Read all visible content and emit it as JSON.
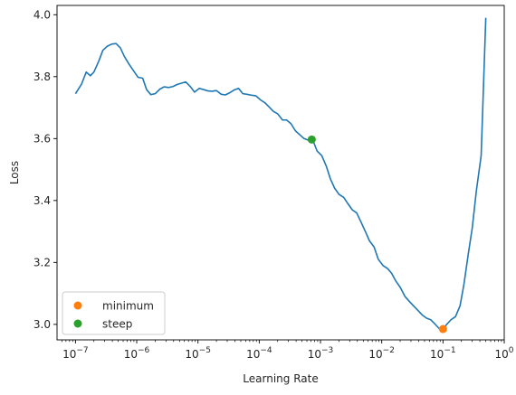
{
  "chart_data": {
    "type": "line",
    "xlabel": "Learning Rate",
    "ylabel": "Loss",
    "xscale": "log",
    "xlim": [
      5e-08,
      1.0
    ],
    "ylim": [
      2.95,
      4.03
    ],
    "xticks": [
      {
        "value": 1e-07,
        "base": "10",
        "exp": "−7"
      },
      {
        "value": 1e-06,
        "base": "10",
        "exp": "−6"
      },
      {
        "value": 1e-05,
        "base": "10",
        "exp": "−5"
      },
      {
        "value": 0.0001,
        "base": "10",
        "exp": "−4"
      },
      {
        "value": 0.001,
        "base": "10",
        "exp": "−3"
      },
      {
        "value": 0.01,
        "base": "10",
        "exp": "−2"
      },
      {
        "value": 0.1,
        "base": "10",
        "exp": "−1"
      },
      {
        "value": 1,
        "base": "10",
        "exp": "0"
      }
    ],
    "yticks": [
      {
        "value": 3.0,
        "label": "3.0"
      },
      {
        "value": 3.2,
        "label": "3.2"
      },
      {
        "value": 3.4,
        "label": "3.4"
      },
      {
        "value": 3.6,
        "label": "3.6"
      },
      {
        "value": 3.8,
        "label": "3.8"
      },
      {
        "value": 4.0,
        "label": "4.0"
      }
    ],
    "grid": false,
    "legend_position": "lower-left",
    "series": [
      {
        "color": "#1f77b4",
        "points": [
          [
            1e-07,
            3.745
          ],
          [
            1.25e-07,
            3.775
          ],
          [
            1.5e-07,
            3.815
          ],
          [
            1.75e-07,
            3.803
          ],
          [
            2e-07,
            3.815
          ],
          [
            2.4e-07,
            3.85
          ],
          [
            2.8e-07,
            3.885
          ],
          [
            3.3e-07,
            3.898
          ],
          [
            3.9e-07,
            3.905
          ],
          [
            4.6e-07,
            3.907
          ],
          [
            5.4e-07,
            3.893
          ],
          [
            6.3e-07,
            3.865
          ],
          [
            7.5e-07,
            3.84
          ],
          [
            8.8e-07,
            3.82
          ],
          [
            1.05e-06,
            3.798
          ],
          [
            1.25e-06,
            3.795
          ],
          [
            1.45e-06,
            3.758
          ],
          [
            1.7e-06,
            3.742
          ],
          [
            2e-06,
            3.745
          ],
          [
            2.4e-06,
            3.76
          ],
          [
            2.8e-06,
            3.767
          ],
          [
            3.3e-06,
            3.765
          ],
          [
            3.9e-06,
            3.768
          ],
          [
            4.6e-06,
            3.775
          ],
          [
            5.4e-06,
            3.779
          ],
          [
            6.3e-06,
            3.783
          ],
          [
            7.5e-06,
            3.768
          ],
          [
            8.8e-06,
            3.75
          ],
          [
            1.05e-05,
            3.762
          ],
          [
            1.25e-05,
            3.758
          ],
          [
            1.45e-05,
            3.754
          ],
          [
            1.7e-05,
            3.753
          ],
          [
            2e-05,
            3.755
          ],
          [
            2.4e-05,
            3.743
          ],
          [
            2.8e-05,
            3.741
          ],
          [
            3.3e-05,
            3.748
          ],
          [
            3.9e-05,
            3.757
          ],
          [
            4.6e-05,
            3.762
          ],
          [
            5.4e-05,
            3.745
          ],
          [
            6.3e-05,
            3.743
          ],
          [
            7.5e-05,
            3.74
          ],
          [
            8.8e-05,
            3.738
          ],
          [
            0.000105,
            3.725
          ],
          [
            0.000125,
            3.715
          ],
          [
            0.000145,
            3.702
          ],
          [
            0.00017,
            3.688
          ],
          [
            0.0002,
            3.68
          ],
          [
            0.00024,
            3.66
          ],
          [
            0.00028,
            3.66
          ],
          [
            0.00033,
            3.648
          ],
          [
            0.00039,
            3.625
          ],
          [
            0.00046,
            3.612
          ],
          [
            0.00054,
            3.6
          ],
          [
            0.00063,
            3.595
          ],
          [
            0.00075,
            3.595
          ],
          [
            0.00088,
            3.56
          ],
          [
            0.00105,
            3.545
          ],
          [
            0.00125,
            3.51
          ],
          [
            0.00145,
            3.47
          ],
          [
            0.0017,
            3.44
          ],
          [
            0.002,
            3.42
          ],
          [
            0.0024,
            3.41
          ],
          [
            0.0028,
            3.39
          ],
          [
            0.0033,
            3.37
          ],
          [
            0.0039,
            3.36
          ],
          [
            0.0046,
            3.33
          ],
          [
            0.0054,
            3.3
          ],
          [
            0.0063,
            3.27
          ],
          [
            0.0075,
            3.25
          ],
          [
            0.0088,
            3.21
          ],
          [
            0.0105,
            3.19
          ],
          [
            0.0125,
            3.18
          ],
          [
            0.0145,
            3.165
          ],
          [
            0.017,
            3.14
          ],
          [
            0.02,
            3.12
          ],
          [
            0.024,
            3.09
          ],
          [
            0.028,
            3.075
          ],
          [
            0.033,
            3.06
          ],
          [
            0.039,
            3.045
          ],
          [
            0.046,
            3.03
          ],
          [
            0.054,
            3.02
          ],
          [
            0.063,
            3.015
          ],
          [
            0.075,
            3.0
          ],
          [
            0.088,
            2.985
          ],
          [
            0.1,
            2.985
          ],
          [
            0.115,
            3.0
          ],
          [
            0.135,
            3.015
          ],
          [
            0.16,
            3.025
          ],
          [
            0.19,
            3.06
          ],
          [
            0.22,
            3.13
          ],
          [
            0.26,
            3.23
          ],
          [
            0.3,
            3.31
          ],
          [
            0.35,
            3.43
          ],
          [
            0.42,
            3.545
          ],
          [
            0.5,
            3.99
          ]
        ]
      }
    ],
    "markers": [
      {
        "label": "minimum",
        "x": 0.1,
        "y": 2.985,
        "color": "#ff7f0e"
      },
      {
        "label": "steep",
        "x": 0.00072,
        "y": 3.597,
        "color": "#2ca02c"
      }
    ],
    "legend": [
      {
        "label": "minimum",
        "color": "#ff7f0e"
      },
      {
        "label": "steep",
        "color": "#2ca02c"
      }
    ]
  }
}
